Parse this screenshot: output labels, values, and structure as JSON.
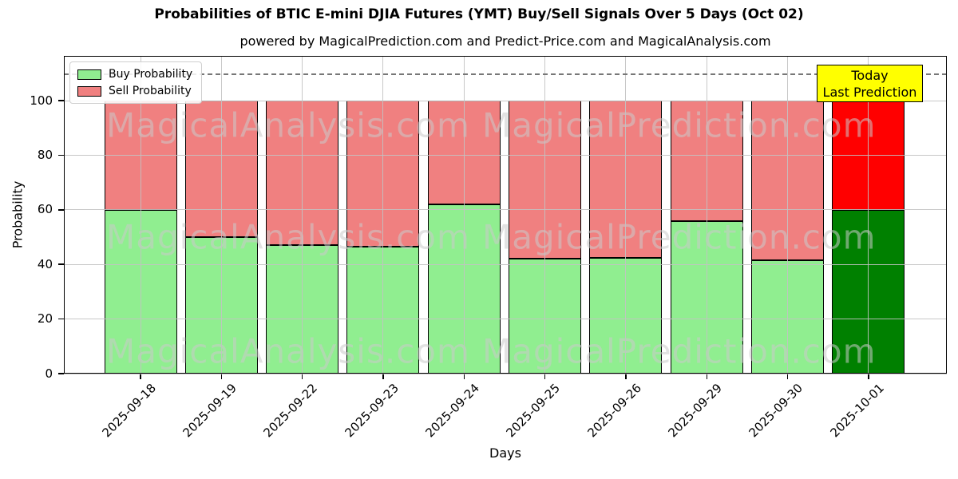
{
  "title": "Probabilities of BTIC E-mini DJIA Futures (YMT) Buy/Sell Signals Over 5 Days (Oct 02)",
  "subtitle": "powered by MagicalPrediction.com and Predict-Price.com and MagicalAnalysis.com",
  "legend": {
    "items": [
      {
        "label": "Buy Probability",
        "color": "#90EE90"
      },
      {
        "label": "Sell Probability",
        "color": "#F08080"
      }
    ]
  },
  "annotation": {
    "line1": "Today",
    "line2": "Last Prediction",
    "bg": "#FFFF00"
  },
  "watermarks": {
    "left": "MagicalAnalysis.com",
    "right": "MagicalPrediction.com"
  },
  "chart_data": {
    "type": "bar",
    "stacked": true,
    "title": "Probabilities of BTIC E-mini DJIA Futures (YMT) Buy/Sell Signals Over 5 Days (Oct 02)",
    "xlabel": "Days",
    "ylabel": "Probability",
    "categories": [
      "2025-09-18",
      "2025-09-19",
      "2025-09-22",
      "2025-09-23",
      "2025-09-24",
      "2025-09-25",
      "2025-09-26",
      "2025-09-29",
      "2025-09-30",
      "2025-10-01"
    ],
    "series": [
      {
        "name": "Buy Probability",
        "color": "#90EE90",
        "last_bar_color": "#008000",
        "values": [
          60,
          50,
          47,
          46.5,
          62,
          42,
          42.5,
          56,
          41.5,
          60
        ]
      },
      {
        "name": "Sell Probability",
        "color": "#F08080",
        "last_bar_color": "#FF0000",
        "values": [
          40,
          50,
          53,
          53.5,
          38,
          58,
          57.5,
          44,
          58.5,
          40
        ]
      }
    ],
    "yticks": [
      0,
      20,
      40,
      60,
      80,
      100
    ],
    "ylim": [
      0,
      116.4
    ],
    "dashed_line_y": 110,
    "grid": true,
    "legend_position": "upper left",
    "last_bar_annotation": "Today Last Prediction"
  },
  "colors": {
    "bar_edge": "#000000",
    "grid": "#c2c2c2",
    "dashed_line": "#777777",
    "watermark": "rgba(202,202,202,0.55)",
    "spine": "#000000",
    "annotation_bg": "#FFFF00"
  }
}
